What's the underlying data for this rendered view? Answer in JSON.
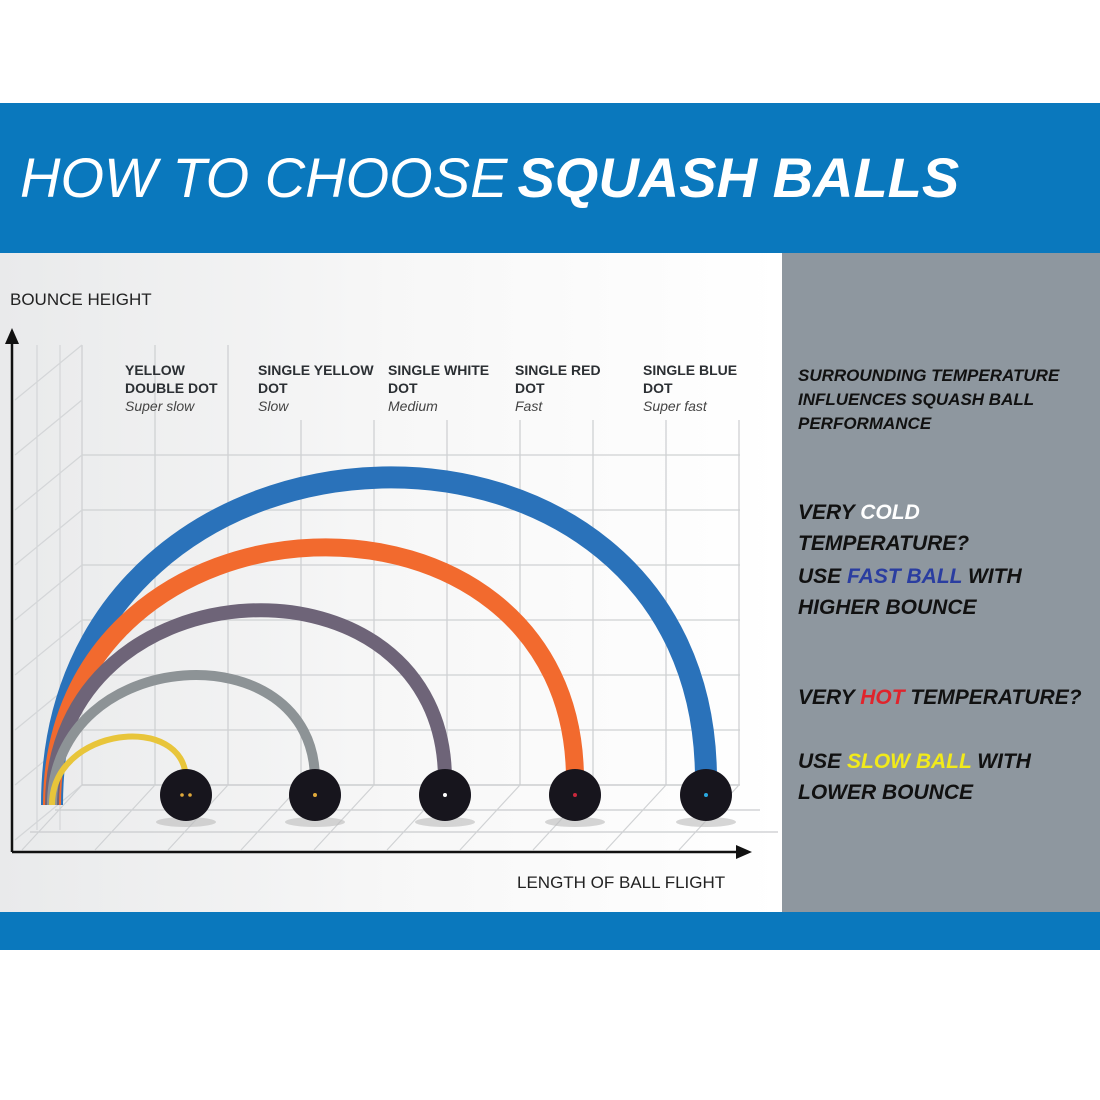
{
  "header": {
    "title_light": "HOW TO CHOOSE",
    "title_bold": "SQUASH BALLS",
    "color": "#0a78bd"
  },
  "chart": {
    "y_axis_label": "BOUNCE HEIGHT",
    "x_axis_label": "LENGTH OF BALL FLIGHT",
    "balls": [
      {
        "name": "YELLOW DOUBLE DOT",
        "speed": "Super slow",
        "arc_color": "#e8c53a",
        "dot_color": "#e0a93a",
        "dots": 2,
        "relative_bounce": 1
      },
      {
        "name": "SINGLE YELLOW DOT",
        "speed": "Slow",
        "arc_color": "#8d9396",
        "dot_color": "#e0a93a",
        "dots": 1,
        "relative_bounce": 2
      },
      {
        "name": "SINGLE WHITE DOT",
        "speed": "Medium",
        "arc_color": "#6e6478",
        "dot_color": "#ffffff",
        "dots": 1,
        "relative_bounce": 3
      },
      {
        "name": "SINGLE RED DOT",
        "speed": "Fast",
        "arc_color": "#f26a2e",
        "dot_color": "#c8283c",
        "dots": 1,
        "relative_bounce": 4
      },
      {
        "name": "SINGLE BLUE DOT",
        "speed": "Super fast",
        "arc_color": "#2a72ba",
        "dot_color": "#2aa8e0",
        "dots": 1,
        "relative_bounce": 5
      }
    ]
  },
  "panel": {
    "intro": "SURROUNDING TEMPERATURE INFLUENCES SQUASH BALL PERFORMANCE",
    "cold_q": {
      "pre": "VERY ",
      "hl": "COLD",
      "post": " TEMPERATURE?",
      "hl_color": "#ffffff"
    },
    "cold_a": {
      "pre": "USE ",
      "hl": "FAST BALL",
      "post": " WITH HIGHER BOUNCE",
      "hl_color": "#2a3da0"
    },
    "hot_q": {
      "pre": "VERY ",
      "hl": "HOT",
      "post": " TEMPERATURE?",
      "hl_color": "#e0242c"
    },
    "hot_a": {
      "pre": "USE ",
      "hl": "SLOW BALL",
      "post": " WITH LOWER BOUNCE",
      "hl_color": "#f2ea1a"
    }
  }
}
